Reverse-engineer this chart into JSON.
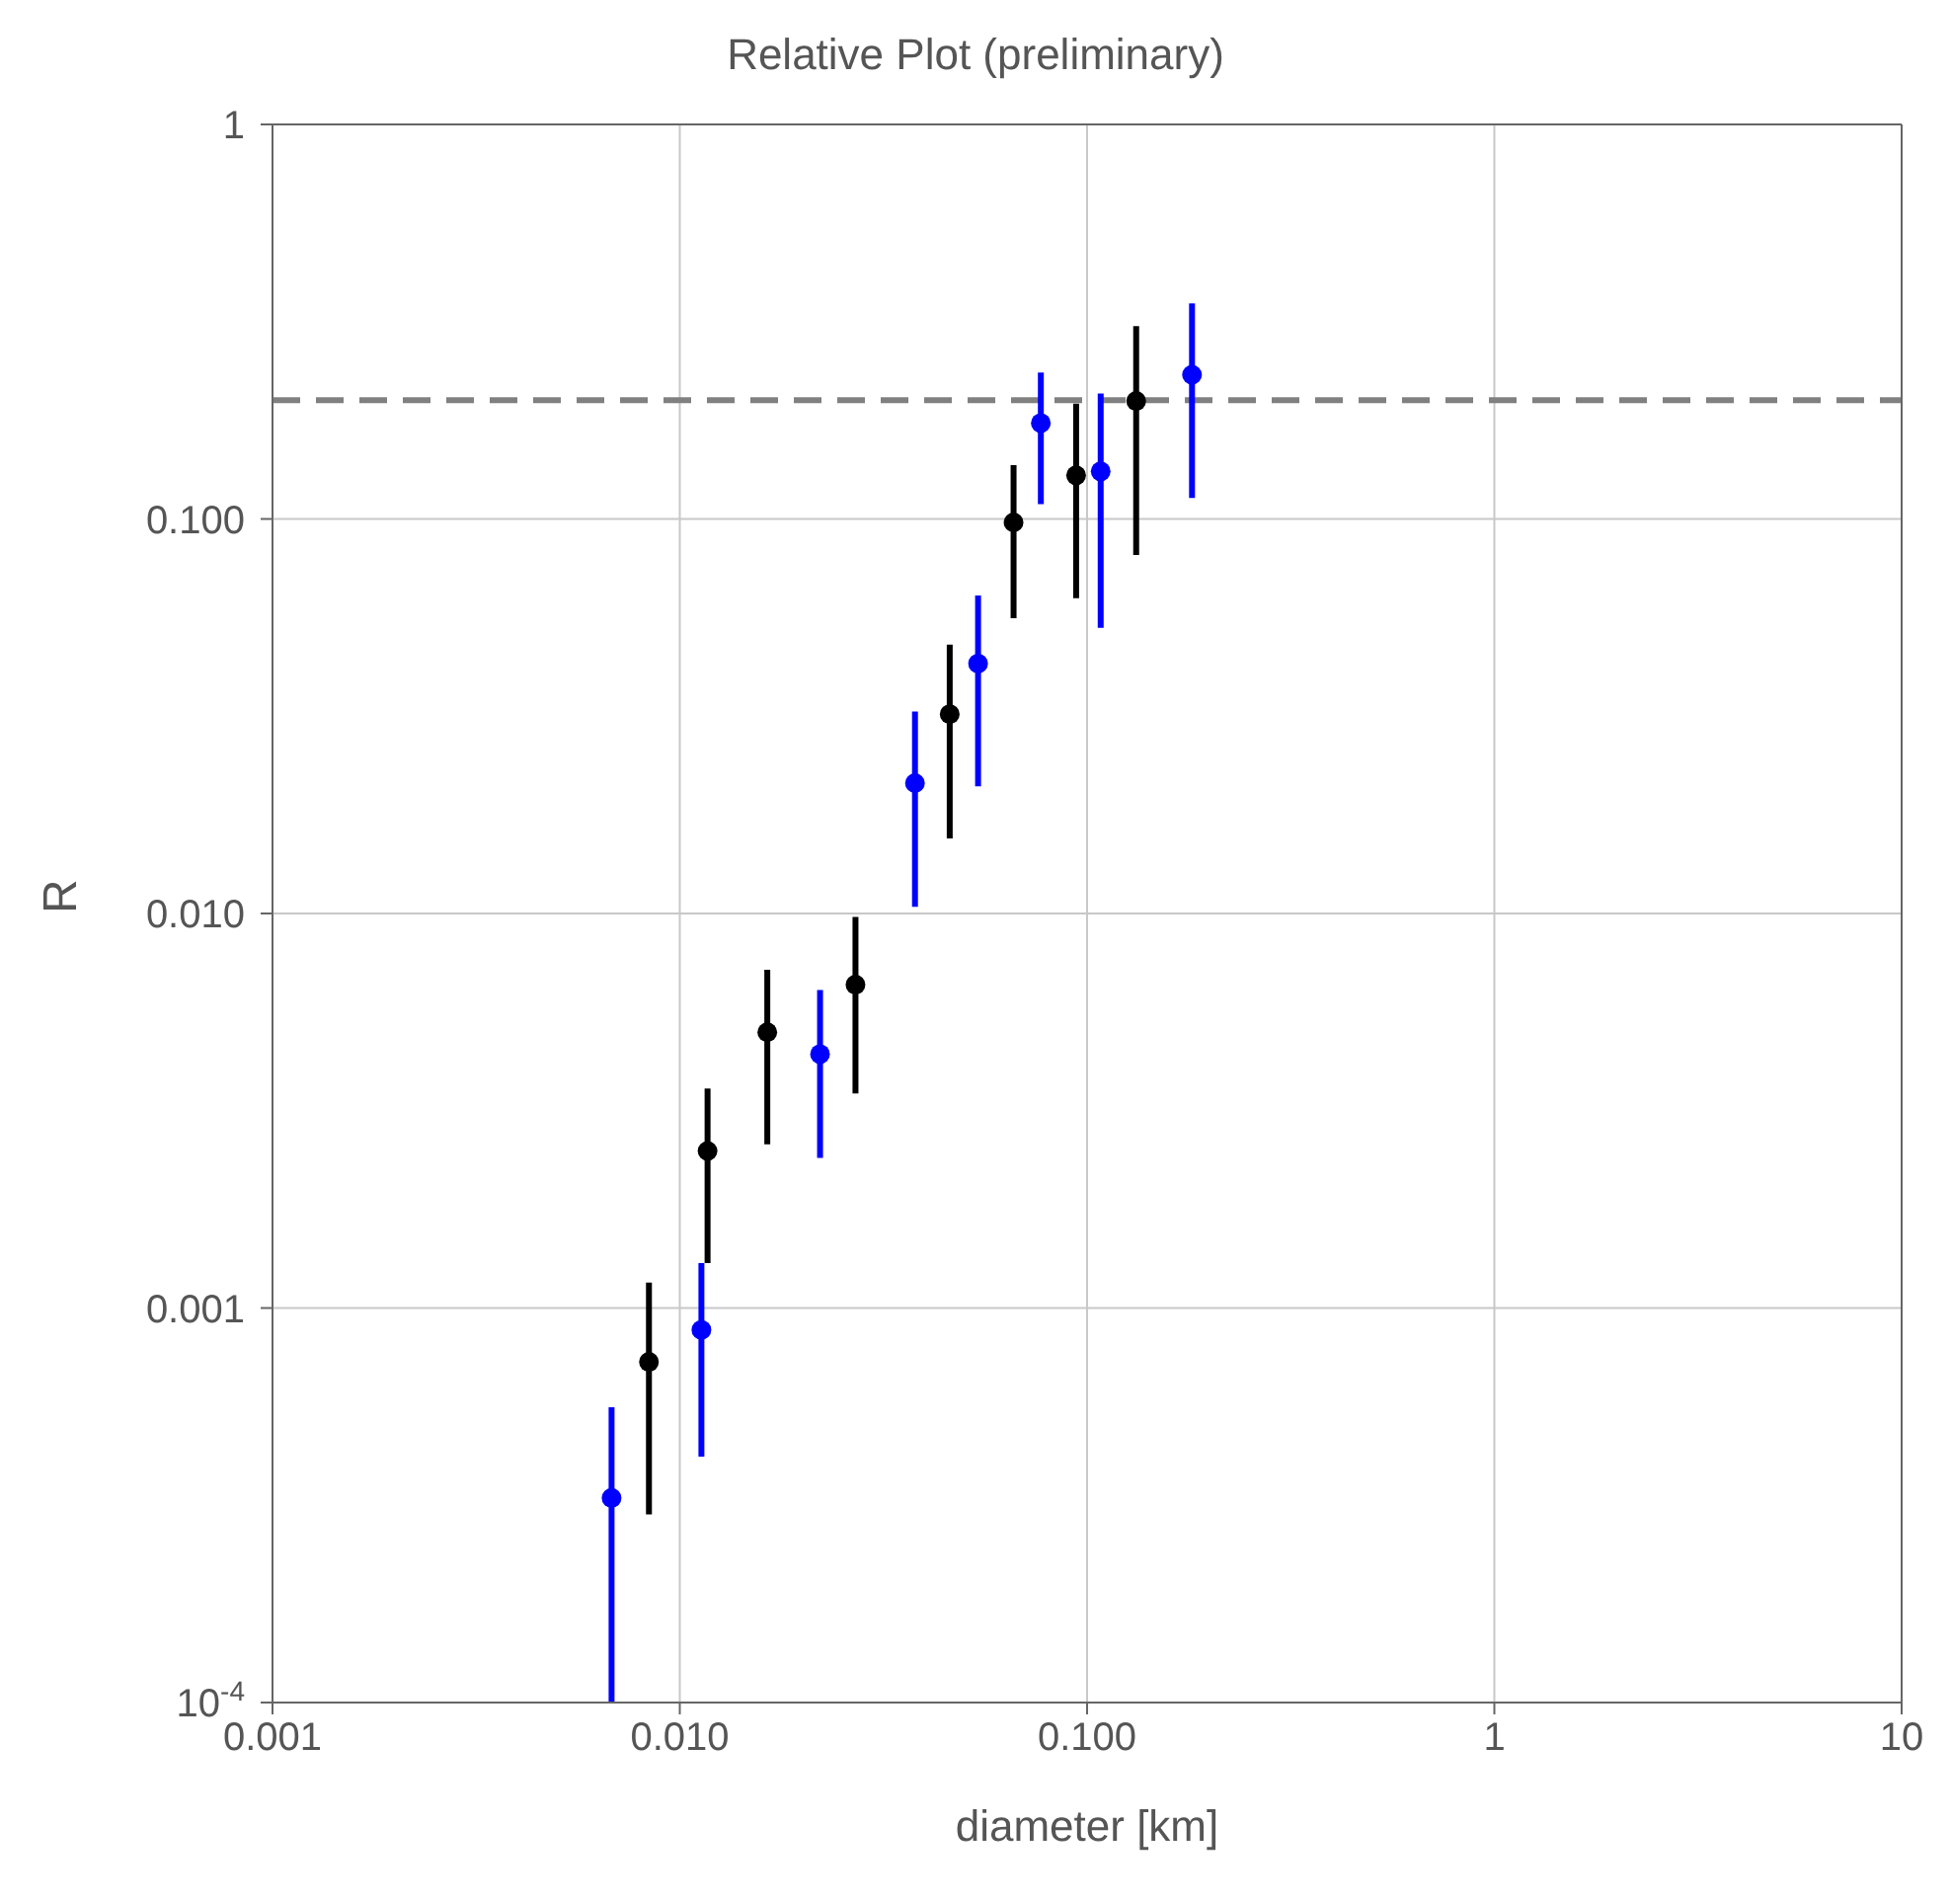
{
  "chart_data": {
    "type": "scatter",
    "title": "Relative Plot (preliminary)",
    "xlabel": "diameter [km]",
    "ylabel": "R",
    "log": "xy",
    "grid": true,
    "marker": "circle",
    "xlim": [
      0.001,
      10
    ],
    "xticks": [
      0.001,
      {
        "value": 0.01,
        "label": "0.010"
      },
      {
        "value": 0.1,
        "label": "0.100"
      },
      1,
      10
    ],
    "ylim": [
      0.0001,
      1
    ],
    "yticks": [
      {
        "value": 0.0001,
        "label": "10$^{-4}$"
      },
      0.001,
      {
        "value": 0.01,
        "label": "0.010"
      },
      {
        "value": 0.1,
        "label": "0.100"
      },
      1
    ],
    "ref_lines": [
      {
        "axis": "y",
        "value": 0.2,
        "color": "#808080",
        "line_style": "dashed"
      }
    ],
    "series": [
      {
        "color": "#000000",
        "x": [
          0.0084,
          0.0117,
          0.0164,
          0.027,
          0.046,
          0.066,
          0.094,
          0.132
        ],
        "values": [
          0.00073,
          0.0025,
          0.005,
          0.0066,
          0.032,
          0.098,
          0.129,
          0.199
        ],
        "errors": [
          [
            0.0003,
            0.00116
          ],
          [
            0.0013,
            0.0036
          ],
          [
            0.0026,
            0.0072
          ],
          [
            0.0035,
            0.0098
          ],
          [
            0.0155,
            0.048
          ],
          [
            0.056,
            0.137
          ],
          [
            0.063,
            0.196
          ],
          [
            0.081,
            0.308
          ]
        ]
      },
      {
        "color": "#0000ff",
        "x": [
          0.0068,
          0.0113,
          0.0221,
          0.0378,
          0.054,
          0.077,
          0.108,
          0.181
        ],
        "values": [
          0.00033,
          0.00088,
          0.0044,
          0.0214,
          0.043,
          0.175,
          0.132,
          0.232
        ],
        "errors": [
          [
            0.0001,
            0.00056
          ],
          [
            0.00042,
            0.0013
          ],
          [
            0.0024,
            0.0064
          ],
          [
            0.0104,
            0.0325
          ],
          [
            0.021,
            0.064
          ],
          [
            0.109,
            0.235
          ],
          [
            0.053,
            0.208
          ],
          [
            0.113,
            0.352
          ]
        ]
      }
    ]
  }
}
